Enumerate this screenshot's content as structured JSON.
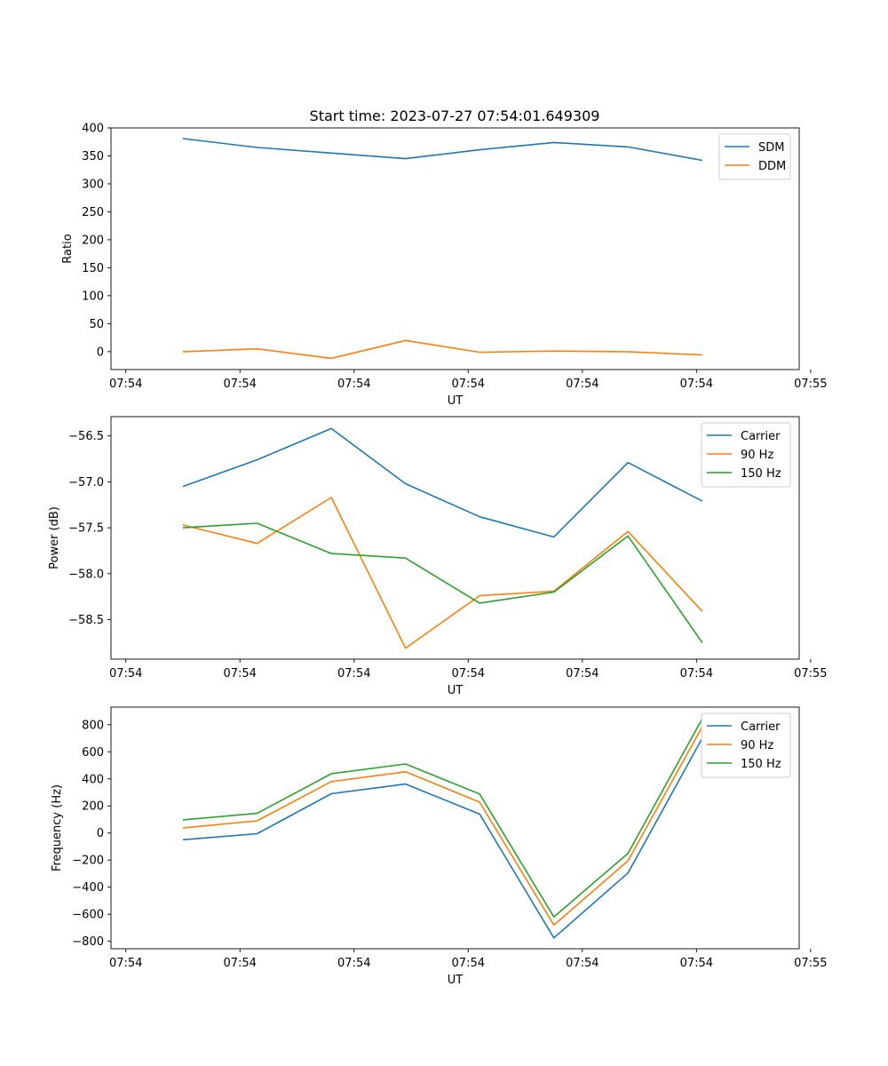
{
  "figure_title": "Start time: 2023-07-27 07:54:01.649309",
  "chart_data": [
    {
      "type": "line",
      "name": "ratio",
      "xlabel": "UT",
      "ylabel": "Ratio",
      "xlim": [
        -0.13,
        5.9
      ],
      "x_ticks": [
        0,
        1,
        2,
        3,
        4,
        5,
        6
      ],
      "x_tick_labels": [
        "07:54",
        "07:54",
        "07:54",
        "07:54",
        "07:54",
        "07:54",
        "07:55"
      ],
      "ylim": [
        -32,
        400
      ],
      "y_ticks": [
        0,
        50,
        100,
        150,
        200,
        250,
        300,
        350,
        400
      ],
      "y_tick_labels": [
        "0",
        "50",
        "100",
        "150",
        "200",
        "250",
        "300",
        "350",
        "400"
      ],
      "x": [
        0.5,
        1.15,
        1.8,
        2.45,
        3.1,
        3.75,
        4.4,
        5.05
      ],
      "series": [
        {
          "name": "SDM",
          "color": "#1f77b4",
          "values": [
            381,
            365,
            355,
            345,
            361,
            374,
            366,
            342
          ]
        },
        {
          "name": "DDM",
          "color": "#ff7f0e",
          "values": [
            0,
            5,
            -12,
            20,
            -1,
            1,
            0,
            -6
          ]
        }
      ],
      "legend": "top-right"
    },
    {
      "type": "line",
      "name": "power",
      "xlabel": "UT",
      "ylabel": "Power (dB)",
      "xlim": [
        -0.13,
        5.9
      ],
      "x_ticks": [
        0,
        1,
        2,
        3,
        4,
        5,
        6
      ],
      "x_tick_labels": [
        "07:54",
        "07:54",
        "07:54",
        "07:54",
        "07:54",
        "07:54",
        "07:55"
      ],
      "ylim": [
        -58.93,
        -56.29
      ],
      "y_ticks": [
        -56.5,
        -57.0,
        -57.5,
        -58.0,
        -58.5
      ],
      "y_tick_labels": [
        "−56.5",
        "−57.0",
        "−57.5",
        "−58.0",
        "−58.5"
      ],
      "x": [
        0.5,
        1.15,
        1.8,
        2.45,
        3.1,
        3.75,
        4.4,
        5.05
      ],
      "series": [
        {
          "name": "Carrier",
          "color": "#1f77b4",
          "values": [
            -57.05,
            -56.76,
            -56.42,
            -57.02,
            -57.38,
            -57.6,
            -56.79,
            -57.21
          ]
        },
        {
          "name": "90 Hz",
          "color": "#ff7f0e",
          "values": [
            -57.47,
            -57.67,
            -57.17,
            -58.81,
            -58.24,
            -58.19,
            -57.54,
            -58.41
          ]
        },
        {
          "name": "150 Hz",
          "color": "#2ca02c",
          "values": [
            -57.5,
            -57.45,
            -57.78,
            -57.83,
            -58.32,
            -58.2,
            -57.59,
            -58.75
          ]
        }
      ],
      "legend": "top-right"
    },
    {
      "type": "line",
      "name": "frequency",
      "xlabel": "UT",
      "ylabel": "Frequency (Hz)",
      "xlim": [
        -0.13,
        5.9
      ],
      "x_ticks": [
        0,
        1,
        2,
        3,
        4,
        5,
        6
      ],
      "x_tick_labels": [
        "07:54",
        "07:54",
        "07:54",
        "07:54",
        "07:54",
        "07:54",
        "07:55"
      ],
      "ylim": [
        -855,
        930
      ],
      "y_ticks": [
        800,
        600,
        400,
        200,
        0,
        -200,
        -400,
        -600,
        -800
      ],
      "y_tick_labels": [
        "800",
        "600",
        "400",
        "200",
        "0",
        "−200",
        "−400",
        "−600",
        "−800"
      ],
      "x": [
        0.5,
        1.15,
        1.8,
        2.45,
        3.1,
        3.75,
        4.4,
        5.05
      ],
      "series": [
        {
          "name": "Carrier",
          "color": "#1f77b4",
          "values": [
            -50,
            -5,
            290,
            362,
            140,
            -775,
            -295,
            700
          ]
        },
        {
          "name": "90 Hz",
          "color": "#ff7f0e",
          "values": [
            37,
            90,
            380,
            452,
            228,
            -680,
            -205,
            785
          ]
        },
        {
          "name": "150 Hz",
          "color": "#2ca02c",
          "values": [
            97,
            145,
            438,
            510,
            288,
            -620,
            -150,
            845
          ]
        }
      ],
      "legend": "top-right"
    }
  ]
}
